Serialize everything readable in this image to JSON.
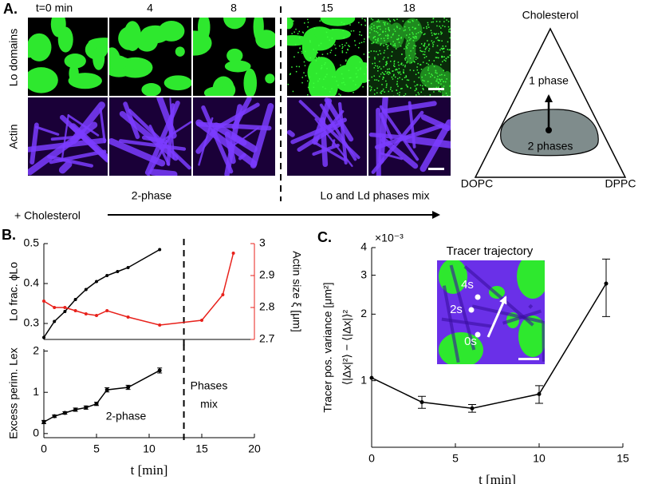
{
  "panel_a": {
    "label": "A.",
    "time_labels": [
      "t=0 min",
      "4",
      "8",
      "15",
      "18"
    ],
    "row_labels": [
      "Lo domains",
      "Actin"
    ],
    "phase_labels": [
      "2-phase",
      "Lo and Ld phases mix"
    ],
    "arrow_label": "+ Cholesterol",
    "ternary": {
      "top": "Cholesterol",
      "left": "DOPC",
      "right": "DPPC",
      "one_phase": "1 phase",
      "two_phases": "2 phases"
    }
  },
  "panel_b_label": "B.",
  "panel_c_label": "C.",
  "chart_data": [
    {
      "type": "line",
      "ylabel": "Lo frac. ϕLo",
      "y2label": "Actin size ξ [μm]",
      "xlim": [
        0,
        20
      ],
      "ylim": [
        0.26,
        0.5
      ],
      "yticks": [
        0.3,
        0.4,
        0.5
      ],
      "y2lim": [
        2.7,
        3
      ],
      "y2ticks": [
        2.7,
        2.8,
        2.9,
        3
      ],
      "divider_x": 13.3,
      "series": [
        {
          "color": "#000000",
          "x": [
            0,
            1,
            2,
            3,
            4,
            5,
            6,
            7,
            8,
            11
          ],
          "values": [
            0.265,
            0.305,
            0.33,
            0.36,
            0.385,
            0.405,
            0.42,
            0.43,
            0.44,
            0.485
          ]
        },
        {
          "color": "#e8211b",
          "axis": "y2",
          "x": [
            0,
            1,
            2,
            3,
            4,
            5,
            6,
            8,
            11,
            15,
            17,
            18
          ],
          "values": [
            2.82,
            2.8,
            2.8,
            2.79,
            2.78,
            2.775,
            2.79,
            2.77,
            2.745,
            2.76,
            2.84,
            2.97
          ]
        }
      ]
    },
    {
      "type": "line",
      "ylabel": "Excess perim. Lex",
      "xlabel": "t [min]",
      "xlim": [
        0,
        20
      ],
      "xticks": [
        0,
        5,
        10,
        15,
        20
      ],
      "ylim": [
        -0.1,
        2.05
      ],
      "yticks": [
        0,
        1,
        2
      ],
      "divider_x": 13.3,
      "annotations": [
        "2-phase",
        "Phases",
        "mix"
      ],
      "series": [
        {
          "color": "#000000",
          "x": [
            0,
            1,
            2,
            3,
            4,
            5,
            6,
            8,
            11
          ],
          "values": [
            0.28,
            0.42,
            0.5,
            0.58,
            0.63,
            0.72,
            1.06,
            1.12,
            1.53
          ],
          "errors": [
            0.04,
            0.03,
            0.03,
            0.04,
            0.04,
            0.04,
            0.05,
            0.05,
            0.06
          ]
        }
      ]
    },
    {
      "type": "line",
      "ylabel": [
        "Tracer pos. variance [μm²]",
        "⟨|Δx|²⟩ − ⟨|Δx|⟩²"
      ],
      "xlabel": "t [min]",
      "scale_label": "×10⁻³",
      "log_y": true,
      "xlim": [
        0,
        15
      ],
      "xticks": [
        0,
        5,
        10,
        15
      ],
      "ylim": [
        0.5,
        4
      ],
      "yticks": [
        1,
        2,
        3,
        4
      ],
      "inset_title": "Tracer trajectory",
      "inset_labels": [
        "4s",
        "2s",
        "0s"
      ],
      "series": [
        {
          "color": "#000000",
          "x": [
            0,
            3,
            6,
            10,
            14
          ],
          "values": [
            1.03,
            0.8,
            0.75,
            0.87,
            2.75
          ],
          "errors": [
            0,
            0.05,
            0.03,
            0.08,
            0.8
          ]
        }
      ]
    }
  ]
}
